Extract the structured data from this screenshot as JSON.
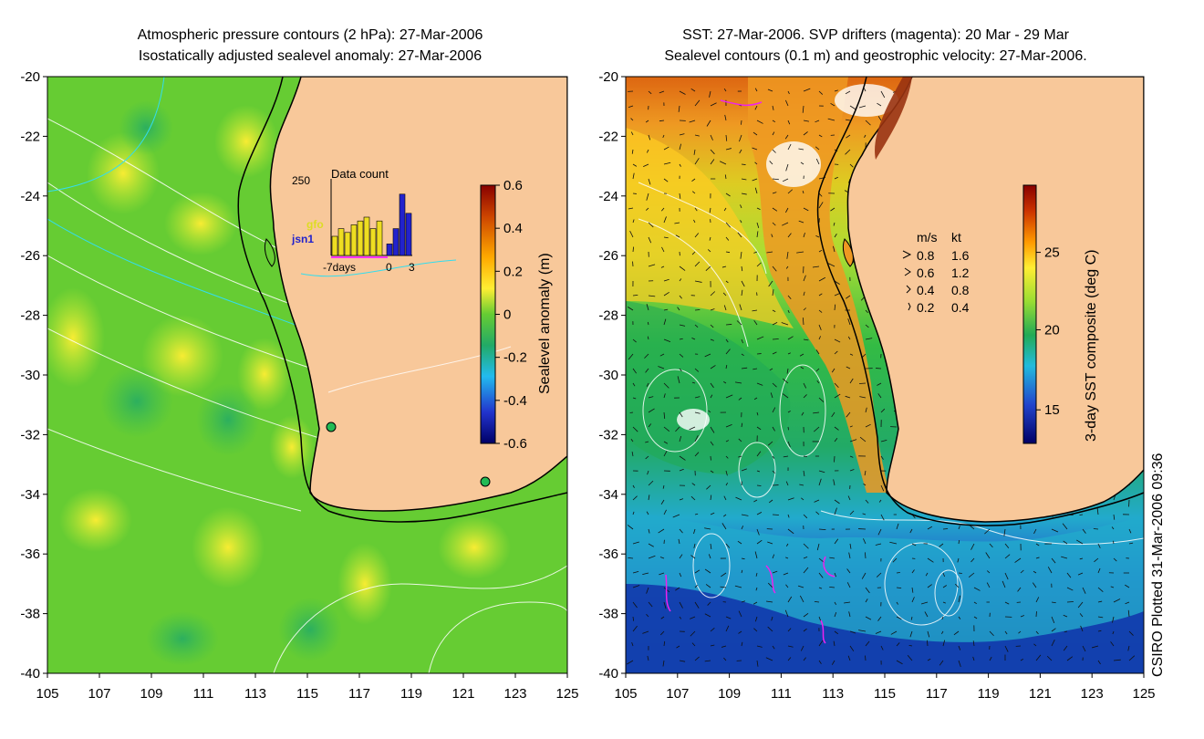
{
  "left_panel": {
    "title_line1": "Atmospheric pressure contours (2 hPa): 27-Mar-2006",
    "title_line2": "Isostatically adjusted sealevel anomaly: 27-Mar-2006",
    "x_ticks": [
      "105",
      "107",
      "109",
      "111",
      "113",
      "115",
      "117",
      "119",
      "121",
      "123",
      "125"
    ],
    "y_ticks": [
      "-20",
      "-22",
      "-24",
      "-26",
      "-28",
      "-30",
      "-32",
      "-34",
      "-36",
      "-38",
      "-40"
    ],
    "colorbar_label": "Sealevel anomaly (m)",
    "colorbar_ticks": [
      "0.6",
      "0.4",
      "0.2",
      "0",
      "-0.2",
      "-0.4",
      "-0.6"
    ],
    "inset": {
      "title": "Data count",
      "ymax_label": "250",
      "sat1": "gfo",
      "sat2": "jsn1",
      "x_label_left": "-7days",
      "x_label_mid": "0",
      "x_label_right": "3",
      "yellow_bars": [
        0.25,
        0.35,
        0.3,
        0.4,
        0.45,
        0.5,
        0.35,
        0.45
      ],
      "blue_bars": [
        0.15,
        0.35,
        0.8,
        0.55
      ]
    }
  },
  "right_panel": {
    "title_line1": "SST: 27-Mar-2006. SVP drifters (magenta): 20 Mar - 29 Mar",
    "title_line2": "Sealevel contours (0.1 m) and geostrophic velocity: 27-Mar-2006.",
    "x_ticks": [
      "105",
      "107",
      "109",
      "111",
      "113",
      "115",
      "117",
      "119",
      "121",
      "123",
      "125"
    ],
    "y_ticks": [
      "-20",
      "-22",
      "-24",
      "-26",
      "-28",
      "-30",
      "-32",
      "-34",
      "-36",
      "-38",
      "-40"
    ],
    "colorbar_label": "3-day SST composite (deg C)",
    "colorbar_ticks": [
      "25",
      "20",
      "15"
    ],
    "legend": {
      "header_ms": "m/s",
      "header_kt": "kt",
      "rows": [
        {
          "ms": "0.8",
          "kt": "1.6"
        },
        {
          "ms": "0.6",
          "kt": "1.2"
        },
        {
          "ms": "0.4",
          "kt": "0.8"
        },
        {
          "ms": "0.2",
          "kt": "0.4"
        }
      ]
    }
  },
  "credit": "CSIRO Plotted 31-Mar-2006 09:36",
  "colors": {
    "land": "#f8c89a",
    "sea_green": "#66cc33",
    "sea_light": "#aadd33",
    "coast": "#000000"
  }
}
